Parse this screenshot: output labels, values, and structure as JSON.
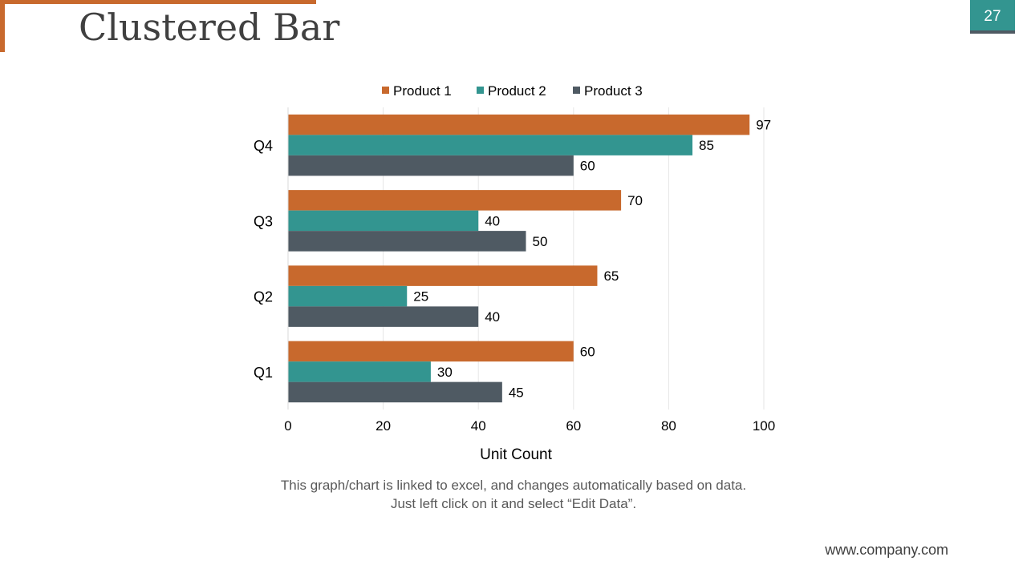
{
  "slide": {
    "title": "Clustered Bar",
    "page_number": "27",
    "note_line1": "This graph/chart is linked to excel, and changes automatically based on data.",
    "note_line2": "Just left click on it and select “Edit Data”.",
    "footer_url": "www.company.com"
  },
  "colors": {
    "accent": "#C8692D",
    "teal": "#339590",
    "slate": "#4F5A63",
    "grid": "#E6E6E6",
    "text": "#000000"
  },
  "chart_data": {
    "type": "bar",
    "orientation": "horizontal",
    "title": "",
    "categories": [
      "Q1",
      "Q2",
      "Q3",
      "Q4"
    ],
    "series": [
      {
        "name": "Product 1",
        "values": [
          60,
          65,
          70,
          97
        ],
        "color": "#C8692D"
      },
      {
        "name": "Product 2",
        "values": [
          30,
          25,
          40,
          85
        ],
        "color": "#339590"
      },
      {
        "name": "Product 3",
        "values": [
          45,
          40,
          50,
          60
        ],
        "color": "#4F5A63"
      }
    ],
    "xlabel": "Unit Count",
    "ylabel": "",
    "xlim": [
      0,
      100
    ],
    "xticks": [
      0,
      20,
      40,
      60,
      80,
      100
    ],
    "legend_position": "top",
    "grid": true,
    "data_labels": true
  }
}
